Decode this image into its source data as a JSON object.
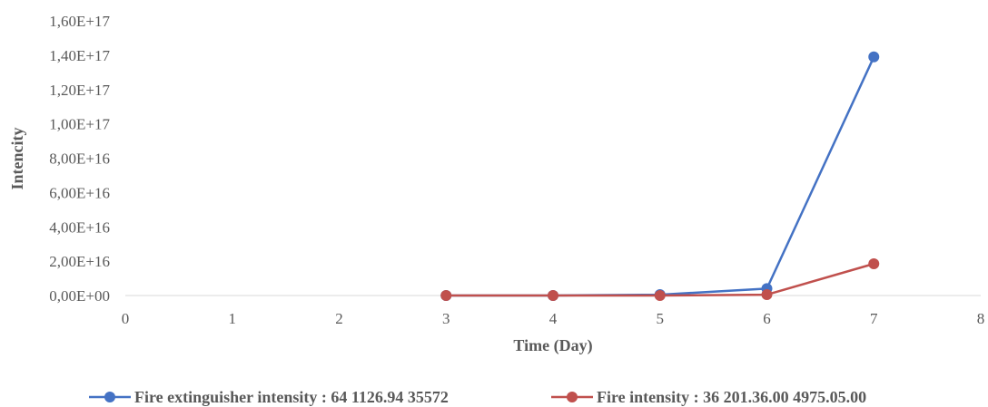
{
  "chart_data": {
    "type": "line",
    "xlabel": "Time (Day)",
    "ylabel": "Intencity",
    "xlim": [
      0,
      8
    ],
    "ylim": [
      0,
      1.6e+17
    ],
    "x_ticks": [
      "0",
      "1",
      "2",
      "3",
      "4",
      "5",
      "6",
      "7",
      "8"
    ],
    "y_ticks": [
      "0,00E+00",
      "2,00E+16",
      "4,00E+16",
      "6,00E+16",
      "8,00E+16",
      "1,00E+17",
      "1,20E+17",
      "1,40E+17",
      "1,60E+17"
    ],
    "grid": false,
    "legend_position": "bottom",
    "series": [
      {
        "name": "Fire extinguisher intensity :  64 1126.94 35572",
        "color": "#4472c4",
        "x": [
          3,
          4,
          5,
          6,
          7
        ],
        "y": [
          0,
          0,
          500000000000000.0,
          4000000000000000.0,
          1.39e+17
        ]
      },
      {
        "name": "Fire intensity :  36 201.36.00 4975.05.00",
        "color": "#c0504d",
        "x": [
          3,
          4,
          5,
          6,
          7
        ],
        "y": [
          0,
          0,
          0,
          500000000000000.0,
          1.85e+16
        ]
      }
    ]
  }
}
